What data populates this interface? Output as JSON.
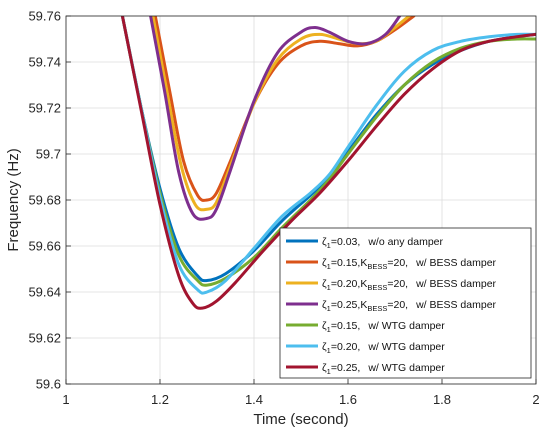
{
  "chart_data": {
    "type": "line",
    "title": "",
    "xlabel": "Time (second)",
    "ylabel": "Frequency (Hz)",
    "xlim": [
      1,
      2
    ],
    "ylim": [
      59.6,
      59.76
    ],
    "xticks": [
      "1",
      "1.2",
      "1.4",
      "1.6",
      "1.8",
      "2"
    ],
    "yticks": [
      "59.6",
      "59.62",
      "59.64",
      "59.66",
      "59.68",
      "59.7",
      "59.72",
      "59.74",
      "59.76"
    ],
    "grid": true,
    "legend_position": "bottom-right",
    "series": [
      {
        "name": "ζ1=0.03,  w/o any damper",
        "legend": {
          "zeta": "ζ",
          "sub": "1",
          "value": "=0.03,",
          "k": "",
          "ksub": "",
          "kval": "",
          "desc": "w/o any damper"
        },
        "color": "#0072BD",
        "points": [
          [
            1.12,
            59.76
          ],
          [
            1.16,
            59.72
          ],
          [
            1.2,
            59.685
          ],
          [
            1.24,
            59.659
          ],
          [
            1.28,
            59.647
          ],
          [
            1.3,
            59.645
          ],
          [
            1.34,
            59.648
          ],
          [
            1.4,
            59.658
          ],
          [
            1.46,
            59.671
          ],
          [
            1.52,
            59.682
          ],
          [
            1.56,
            59.69
          ],
          [
            1.6,
            59.701
          ],
          [
            1.66,
            59.717
          ],
          [
            1.72,
            59.73
          ],
          [
            1.78,
            59.739
          ],
          [
            1.84,
            59.745
          ],
          [
            1.9,
            59.749
          ],
          [
            1.96,
            59.751
          ],
          [
            2.0,
            59.752
          ]
        ]
      },
      {
        "name": "ζ1=0.15,  KBESS=20,  w/ BESS damper",
        "legend": {
          "zeta": "ζ",
          "sub": "1",
          "value": "=0.15,",
          "k": "K",
          "ksub": "BESS",
          "kval": "=20,",
          "desc": "w/ BESS damper"
        },
        "color": "#D95319",
        "points": [
          [
            1.19,
            59.76
          ],
          [
            1.22,
            59.728
          ],
          [
            1.25,
            59.697
          ],
          [
            1.28,
            59.682
          ],
          [
            1.3,
            59.68
          ],
          [
            1.32,
            59.683
          ],
          [
            1.35,
            59.697
          ],
          [
            1.4,
            59.722
          ],
          [
            1.45,
            59.739
          ],
          [
            1.5,
            59.747
          ],
          [
            1.54,
            59.749
          ],
          [
            1.58,
            59.748
          ],
          [
            1.62,
            59.747
          ],
          [
            1.66,
            59.749
          ],
          [
            1.7,
            59.754
          ],
          [
            1.74,
            59.76
          ]
        ]
      },
      {
        "name": "ζ1=0.20,  KBESS=20,  w/ BESS damper",
        "legend": {
          "zeta": "ζ",
          "sub": "1",
          "value": "=0.20,",
          "k": "K",
          "ksub": "BESS",
          "kval": "=20,",
          "desc": "w/ BESS damper"
        },
        "color": "#EDB120",
        "points": [
          [
            1.185,
            59.76
          ],
          [
            1.215,
            59.727
          ],
          [
            1.245,
            59.695
          ],
          [
            1.275,
            59.678
          ],
          [
            1.3,
            59.676
          ],
          [
            1.32,
            59.679
          ],
          [
            1.35,
            59.695
          ],
          [
            1.4,
            59.722
          ],
          [
            1.45,
            59.741
          ],
          [
            1.5,
            59.75
          ],
          [
            1.54,
            59.752
          ],
          [
            1.58,
            59.75
          ],
          [
            1.62,
            59.748
          ],
          [
            1.66,
            59.749
          ],
          [
            1.7,
            59.755
          ],
          [
            1.73,
            59.76
          ]
        ]
      },
      {
        "name": "ζ1=0.25,  KBESS=20,  w/ BESS damper",
        "legend": {
          "zeta": "ζ",
          "sub": "1",
          "value": "=0.25,",
          "k": "K",
          "ksub": "BESS",
          "kval": "=20,",
          "desc": "w/ BESS damper"
        },
        "color": "#7E2F8E",
        "points": [
          [
            1.18,
            59.76
          ],
          [
            1.21,
            59.727
          ],
          [
            1.24,
            59.692
          ],
          [
            1.27,
            59.674
          ],
          [
            1.3,
            59.672
          ],
          [
            1.32,
            59.676
          ],
          [
            1.35,
            59.693
          ],
          [
            1.4,
            59.723
          ],
          [
            1.45,
            59.744
          ],
          [
            1.5,
            59.753
          ],
          [
            1.53,
            59.755
          ],
          [
            1.56,
            59.753
          ],
          [
            1.6,
            59.749
          ],
          [
            1.64,
            59.748
          ],
          [
            1.68,
            59.752
          ],
          [
            1.71,
            59.76
          ]
        ]
      },
      {
        "name": "ζ1=0.15,  w/ WTG damper",
        "legend": {
          "zeta": "ζ",
          "sub": "1",
          "value": "=0.15,",
          "k": "",
          "ksub": "",
          "kval": "",
          "desc": "w/ WTG damper"
        },
        "color": "#77AC30",
        "points": [
          [
            1.12,
            59.76
          ],
          [
            1.16,
            59.72
          ],
          [
            1.2,
            59.683
          ],
          [
            1.24,
            59.656
          ],
          [
            1.28,
            59.645
          ],
          [
            1.3,
            59.643
          ],
          [
            1.34,
            59.646
          ],
          [
            1.4,
            59.655
          ],
          [
            1.46,
            59.668
          ],
          [
            1.52,
            59.68
          ],
          [
            1.56,
            59.689
          ],
          [
            1.6,
            59.7
          ],
          [
            1.66,
            59.716
          ],
          [
            1.72,
            59.73
          ],
          [
            1.78,
            59.74
          ],
          [
            1.84,
            59.746
          ],
          [
            1.9,
            59.749
          ],
          [
            1.96,
            59.75
          ],
          [
            2.0,
            59.75
          ]
        ]
      },
      {
        "name": "ζ1=0.20,  w/ WTG damper",
        "legend": {
          "zeta": "ζ",
          "sub": "1",
          "value": "=0.20,",
          "k": "",
          "ksub": "",
          "kval": "",
          "desc": "w/ WTG damper"
        },
        "color": "#4DBEEE",
        "points": [
          [
            1.12,
            59.76
          ],
          [
            1.16,
            59.72
          ],
          [
            1.2,
            59.681
          ],
          [
            1.24,
            59.652
          ],
          [
            1.28,
            59.641
          ],
          [
            1.3,
            59.64
          ],
          [
            1.34,
            59.645
          ],
          [
            1.4,
            59.659
          ],
          [
            1.46,
            59.673
          ],
          [
            1.52,
            59.683
          ],
          [
            1.56,
            59.691
          ],
          [
            1.6,
            59.703
          ],
          [
            1.66,
            59.721
          ],
          [
            1.72,
            59.736
          ],
          [
            1.78,
            59.745
          ],
          [
            1.84,
            59.749
          ],
          [
            1.9,
            59.751
          ],
          [
            1.96,
            59.752
          ],
          [
            2.0,
            59.752
          ]
        ]
      },
      {
        "name": "ζ1=0.25,  w/ WTG damper",
        "legend": {
          "zeta": "ζ",
          "sub": "1",
          "value": "=0.25,",
          "k": "",
          "ksub": "",
          "kval": "",
          "desc": "w/ WTG damper"
        },
        "color": "#A2142F",
        "points": [
          [
            1.12,
            59.76
          ],
          [
            1.16,
            59.719
          ],
          [
            1.2,
            59.678
          ],
          [
            1.24,
            59.647
          ],
          [
            1.27,
            59.635
          ],
          [
            1.29,
            59.633
          ],
          [
            1.32,
            59.636
          ],
          [
            1.36,
            59.644
          ],
          [
            1.42,
            59.658
          ],
          [
            1.48,
            59.671
          ],
          [
            1.54,
            59.683
          ],
          [
            1.6,
            59.697
          ],
          [
            1.66,
            59.712
          ],
          [
            1.72,
            59.726
          ],
          [
            1.78,
            59.737
          ],
          [
            1.84,
            59.745
          ],
          [
            1.9,
            59.749
          ],
          [
            1.96,
            59.751
          ],
          [
            2.0,
            59.752
          ]
        ]
      }
    ]
  }
}
